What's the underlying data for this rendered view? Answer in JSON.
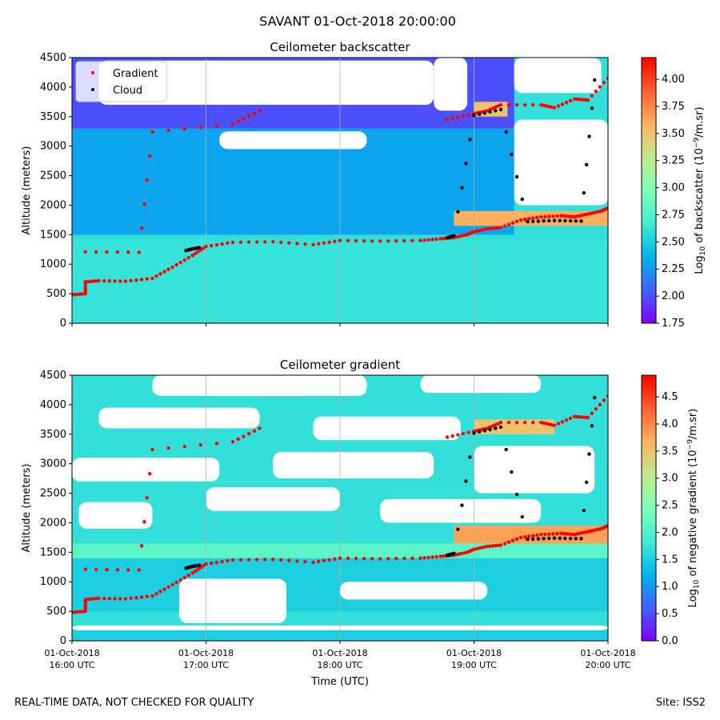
{
  "figure": {
    "suptitle": "SAVANT 01-Oct-2018 20:00:00",
    "footer_left": "REAL-TIME DATA, NOT CHECKED FOR QUALITY",
    "footer_right": "Site: ISS2"
  },
  "chart_data": [
    {
      "type": "heatmap",
      "title": "Ceilometer backscatter",
      "ylabel": "Altitude (meters)",
      "xlabel": "",
      "xlim": [
        16.0,
        20.0
      ],
      "ylim": [
        0,
        4500
      ],
      "yticks": [
        0,
        500,
        1000,
        1500,
        2000,
        2500,
        3000,
        3500,
        4000,
        4500
      ],
      "show_xticklabels": false,
      "colorbar": {
        "label": "Log10 of backscatter (10^-9/m.sr)",
        "label_parts": [
          "Log",
          "10",
          " of backscatter (10",
          "−9",
          "/m.sr)"
        ],
        "range": [
          1.75,
          4.2
        ],
        "ticks": [
          1.75,
          2.0,
          2.25,
          2.5,
          2.75,
          3.0,
          3.25,
          3.5,
          3.75,
          4.0
        ],
        "tick_labels": [
          "1.75",
          "2.00",
          "2.25",
          "2.50",
          "2.75",
          "3.00",
          "3.25",
          "3.50",
          "3.75",
          "4.00"
        ],
        "colormap": "rainbow"
      },
      "legend": {
        "position": "top-left",
        "entries": [
          {
            "label": "Gradient",
            "color": "#ff0000"
          },
          {
            "label": "Cloud",
            "color": "#000000"
          }
        ]
      },
      "layers": [
        {
          "kind": "background",
          "value": 2.6
        },
        {
          "kind": "band",
          "t0": 16.0,
          "t1": 20.0,
          "y0": 0,
          "y1": 1400,
          "value": 2.62
        },
        {
          "kind": "band",
          "t0": 16.0,
          "t1": 19.3,
          "y0": 1500,
          "y1": 3300,
          "value": 2.3
        },
        {
          "kind": "band",
          "t0": 16.0,
          "t1": 19.3,
          "y0": 3300,
          "y1": 4500,
          "value": 2.0
        },
        {
          "kind": "band",
          "t0": 18.85,
          "t1": 20.0,
          "y0": 1650,
          "y1": 1900,
          "value": 3.6
        },
        {
          "kind": "band",
          "t0": 19.0,
          "t1": 19.25,
          "y0": 3500,
          "y1": 3750,
          "value": 3.5
        },
        {
          "kind": "gap",
          "t0": 16.2,
          "t1": 18.7,
          "y0": 3700,
          "y1": 4450
        },
        {
          "kind": "gap",
          "t0": 17.1,
          "t1": 18.2,
          "y0": 2950,
          "y1": 3250
        },
        {
          "kind": "gap",
          "t0": 18.7,
          "t1": 18.95,
          "y0": 3600,
          "y1": 4500
        },
        {
          "kind": "gap",
          "t0": 19.3,
          "t1": 20.0,
          "y0": 2000,
          "y1": 3450
        },
        {
          "kind": "gap",
          "t0": 19.3,
          "t1": 19.95,
          "y0": 3900,
          "y1": 4500
        }
      ],
      "series": [
        {
          "name": "Gradient",
          "color": "#ff0000",
          "x": [
            16.0,
            16.1,
            16.1,
            16.2,
            16.4,
            16.6,
            16.75,
            16.9,
            17.0,
            17.2,
            17.5,
            17.8,
            18.0,
            18.3,
            18.6,
            18.75,
            18.85,
            18.95,
            19.0,
            19.1,
            19.2,
            19.35,
            19.5,
            19.65,
            19.75,
            19.85,
            19.95,
            20.0
          ],
          "y": [
            480,
            500,
            700,
            720,
            710,
            760,
            950,
            1150,
            1300,
            1370,
            1380,
            1330,
            1400,
            1390,
            1400,
            1430,
            1450,
            1500,
            1550,
            1600,
            1620,
            1750,
            1800,
            1820,
            1800,
            1850,
            1900,
            1950
          ]
        },
        {
          "name": "Gradient (upper)",
          "color": "#ff0000",
          "x": [
            16.1,
            16.5,
            16.6,
            17.2,
            17.4,
            18.8,
            19.0,
            19.1,
            19.2,
            19.5,
            19.6,
            19.75,
            19.85,
            20.0
          ],
          "y": [
            1210,
            1200,
            3240,
            3370,
            3600,
            3450,
            3550,
            3600,
            3700,
            3700,
            3650,
            3800,
            3780,
            4150
          ]
        },
        {
          "name": "Cloud",
          "color": "#000000",
          "x": [
            16.85,
            16.9,
            16.95,
            18.8,
            18.85,
            19.0,
            19.2,
            19.4,
            19.6,
            19.8,
            19.9
          ],
          "y": [
            1230,
            1260,
            1280,
            1450,
            1480,
            3520,
            3620,
            1720,
            1740,
            1730,
            4120
          ]
        }
      ]
    },
    {
      "type": "heatmap",
      "title": "Ceilometer gradient",
      "ylabel": "Altitude (meters)",
      "xlabel": "Time (UTC)",
      "xlim": [
        16.0,
        20.0
      ],
      "ylim": [
        0,
        4500
      ],
      "yticks": [
        0,
        500,
        1000,
        1500,
        2000,
        2500,
        3000,
        3500,
        4000,
        4500
      ],
      "xticks": [
        16.0,
        17.0,
        18.0,
        19.0,
        20.0
      ],
      "xtick_labels": [
        [
          "01-Oct-2018",
          "16:00 UTC"
        ],
        [
          "01-Oct-2018",
          "17:00 UTC"
        ],
        [
          "01-Oct-2018",
          "18:00 UTC"
        ],
        [
          "01-Oct-2018",
          "19:00 UTC"
        ],
        [
          "01-Oct-2018",
          "20:00 UTC"
        ]
      ],
      "colorbar": {
        "label": "Log10 of negative gradient (10^-9/m.sr)",
        "label_parts": [
          "Log",
          "10",
          " of negative gradient (10",
          "−9",
          "/m.sr)"
        ],
        "range": [
          0.0,
          4.9
        ],
        "ticks": [
          0.0,
          0.5,
          1.0,
          1.5,
          2.0,
          2.5,
          3.0,
          3.5,
          4.0,
          4.5
        ],
        "tick_labels": [
          "0.0",
          "0.5",
          "1.0",
          "1.5",
          "2.0",
          "2.5",
          "3.0",
          "3.5",
          "4.0",
          "4.5"
        ],
        "colormap": "rainbow"
      },
      "layers": [
        {
          "kind": "background",
          "value": 1.7
        },
        {
          "kind": "band",
          "t0": 16.0,
          "t1": 20.0,
          "y0": 0,
          "y1": 180,
          "value": 1.5
        },
        {
          "kind": "band",
          "t0": 16.0,
          "t1": 20.0,
          "y0": 500,
          "y1": 1400,
          "value": 1.5
        },
        {
          "kind": "band",
          "t0": 16.0,
          "t1": 20.0,
          "y0": 1400,
          "y1": 1650,
          "value": 2.1
        },
        {
          "kind": "band",
          "t0": 18.85,
          "t1": 20.0,
          "y0": 1650,
          "y1": 1950,
          "value": 3.8
        },
        {
          "kind": "band",
          "t0": 19.0,
          "t1": 19.6,
          "y0": 3500,
          "y1": 3750,
          "value": 3.5
        },
        {
          "kind": "gap",
          "t0": 16.0,
          "t1": 20.0,
          "y0": 180,
          "y1": 260
        },
        {
          "kind": "gap",
          "t0": 16.8,
          "t1": 17.6,
          "y0": 300,
          "y1": 1050
        },
        {
          "kind": "gap",
          "t0": 18.0,
          "t1": 19.1,
          "y0": 700,
          "y1": 1000
        },
        {
          "kind": "gap",
          "t0": 16.05,
          "t1": 16.6,
          "y0": 1900,
          "y1": 2350
        },
        {
          "kind": "gap",
          "t0": 17.0,
          "t1": 18.0,
          "y0": 2200,
          "y1": 2600
        },
        {
          "kind": "gap",
          "t0": 18.3,
          "t1": 19.5,
          "y0": 2000,
          "y1": 2400
        },
        {
          "kind": "gap",
          "t0": 16.0,
          "t1": 17.1,
          "y0": 2700,
          "y1": 3100
        },
        {
          "kind": "gap",
          "t0": 17.5,
          "t1": 18.7,
          "y0": 2750,
          "y1": 3200
        },
        {
          "kind": "gap",
          "t0": 19.0,
          "t1": 19.9,
          "y0": 2500,
          "y1": 3300
        },
        {
          "kind": "gap",
          "t0": 16.2,
          "t1": 17.4,
          "y0": 3600,
          "y1": 3950
        },
        {
          "kind": "gap",
          "t0": 17.8,
          "t1": 18.9,
          "y0": 3400,
          "y1": 3800
        },
        {
          "kind": "gap",
          "t0": 16.6,
          "t1": 18.2,
          "y0": 4150,
          "y1": 4500
        },
        {
          "kind": "gap",
          "t0": 18.6,
          "t1": 19.5,
          "y0": 4200,
          "y1": 4500
        }
      ],
      "series": [
        {
          "name": "Gradient",
          "color": "#ff0000",
          "x": [
            16.0,
            16.1,
            16.1,
            16.2,
            16.4,
            16.6,
            16.75,
            16.9,
            17.0,
            17.2,
            17.5,
            17.8,
            18.0,
            18.3,
            18.6,
            18.75,
            18.85,
            18.95,
            19.0,
            19.1,
            19.2,
            19.35,
            19.5,
            19.65,
            19.75,
            19.85,
            19.95,
            20.0
          ],
          "y": [
            480,
            500,
            700,
            720,
            710,
            760,
            950,
            1150,
            1300,
            1370,
            1380,
            1330,
            1400,
            1390,
            1400,
            1430,
            1450,
            1500,
            1550,
            1600,
            1620,
            1750,
            1800,
            1820,
            1800,
            1850,
            1900,
            1950
          ]
        },
        {
          "name": "Gradient (upper)",
          "color": "#ff0000",
          "x": [
            16.1,
            16.5,
            16.6,
            17.2,
            17.4,
            18.8,
            19.0,
            19.1,
            19.2,
            19.5,
            19.6,
            19.75,
            19.85,
            20.0
          ],
          "y": [
            1210,
            1200,
            3240,
            3370,
            3600,
            3450,
            3550,
            3600,
            3700,
            3700,
            3650,
            3800,
            3780,
            4150
          ]
        },
        {
          "name": "Cloud",
          "color": "#000000",
          "x": [
            16.85,
            16.9,
            16.95,
            18.8,
            18.85,
            19.0,
            19.2,
            19.4,
            19.6,
            19.8,
            19.9
          ],
          "y": [
            1230,
            1260,
            1280,
            1450,
            1480,
            3520,
            3620,
            1720,
            1740,
            1730,
            4120
          ]
        }
      ]
    }
  ]
}
